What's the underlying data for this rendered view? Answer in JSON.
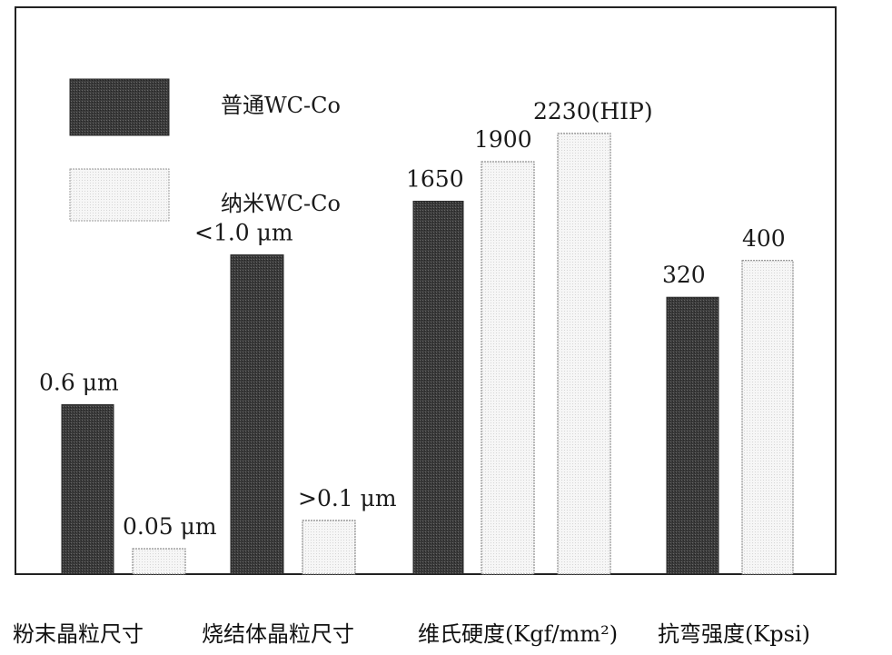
{
  "chart_data": {
    "type": "bar",
    "colors": {
      "conventional": "#3a3a3a",
      "nano": "#f4f4f4"
    },
    "legend": [
      {
        "key": "conventional",
        "label": "普通WC-Co"
      },
      {
        "key": "nano",
        "label": "纳米WC-Co"
      }
    ],
    "categories": [
      {
        "label": "粉末晶粒尺寸"
      },
      {
        "label": "烧结体晶粒尺寸"
      },
      {
        "label": "维氏硬度(Kgf/mm²)"
      },
      {
        "label": "抗弯强度(Kpsi)"
      }
    ],
    "bars": [
      {
        "category": "粉末晶粒尺寸",
        "series": "conventional",
        "label": "0.6 μm"
      },
      {
        "category": "粉末晶粒尺寸",
        "series": "nano",
        "label": "0.05 μm"
      },
      {
        "category": "烧结体晶粒尺寸",
        "series": "conventional",
        "label": "<1.0 μm"
      },
      {
        "category": "烧结体晶粒尺寸",
        "series": "nano",
        "label": ">0.1 μm"
      },
      {
        "category": "维氏硬度(Kgf/mm²)",
        "series": "conventional",
        "label": "1650",
        "value": 1650
      },
      {
        "category": "维氏硬度(Kgf/mm²)",
        "series": "nano",
        "label": "1900",
        "value": 1900
      },
      {
        "category": "维氏硬度(Kgf/mm²)",
        "series": "nano",
        "label": "2230(HIP)",
        "value": 2230
      },
      {
        "category": "抗弯强度(Kpsi)",
        "series": "conventional",
        "label": "320",
        "value": 320
      },
      {
        "category": "抗弯强度(Kpsi)",
        "series": "nano",
        "label": "400",
        "value": 400
      }
    ],
    "level": [
      0.3,
      0.045,
      0.565,
      0.095,
      0.66,
      0.73,
      0.78,
      0.49,
      0.555
    ],
    "grid": false,
    "legend_position": "top-left"
  }
}
